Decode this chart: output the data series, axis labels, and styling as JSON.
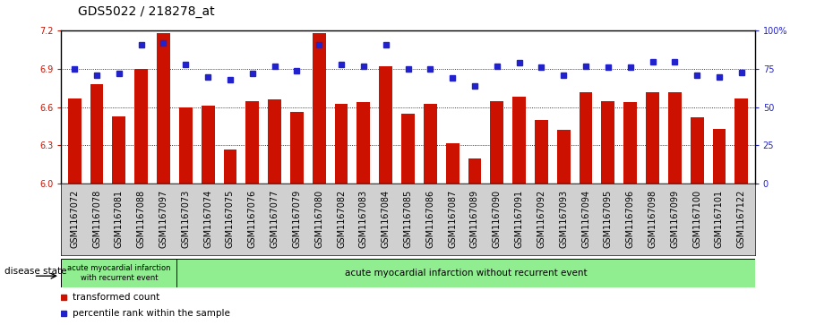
{
  "title": "GDS5022 / 218278_at",
  "categories": [
    "GSM1167072",
    "GSM1167078",
    "GSM1167081",
    "GSM1167088",
    "GSM1167097",
    "GSM1167073",
    "GSM1167074",
    "GSM1167075",
    "GSM1167076",
    "GSM1167077",
    "GSM1167079",
    "GSM1167080",
    "GSM1167082",
    "GSM1167083",
    "GSM1167084",
    "GSM1167085",
    "GSM1167086",
    "GSM1167087",
    "GSM1167089",
    "GSM1167090",
    "GSM1167091",
    "GSM1167092",
    "GSM1167093",
    "GSM1167094",
    "GSM1167095",
    "GSM1167096",
    "GSM1167098",
    "GSM1167099",
    "GSM1167100",
    "GSM1167101",
    "GSM1167122"
  ],
  "bar_values": [
    6.67,
    6.78,
    6.53,
    6.9,
    7.18,
    6.6,
    6.61,
    6.27,
    6.65,
    6.66,
    6.56,
    7.18,
    6.63,
    6.64,
    6.92,
    6.55,
    6.63,
    6.32,
    6.2,
    6.65,
    6.68,
    6.5,
    6.42,
    6.72,
    6.65,
    6.64,
    6.72,
    6.72,
    6.52,
    6.43,
    6.67
  ],
  "dot_values": [
    75.0,
    71.0,
    72.0,
    91.0,
    92.0,
    78.0,
    70.0,
    68.0,
    72.0,
    77.0,
    74.0,
    91.0,
    78.0,
    77.0,
    91.0,
    75.0,
    75.0,
    69.0,
    64.0,
    77.0,
    79.0,
    76.0,
    71.0,
    77.0,
    76.0,
    76.0,
    80.0,
    80.0,
    71.0,
    70.0,
    73.0
  ],
  "ylim_left": [
    6.0,
    7.2
  ],
  "ylim_right": [
    0,
    100
  ],
  "yticks_left": [
    6.0,
    6.3,
    6.6,
    6.9,
    7.2
  ],
  "yticks_right": [
    0,
    25,
    50,
    75,
    100
  ],
  "bar_color": "#CC1100",
  "dot_color": "#2222CC",
  "group1_label": "acute myocardial infarction\nwith recurrent event",
  "group2_label": "acute myocardial infarction without recurrent event",
  "group1_count": 5,
  "disease_state_label": "disease state",
  "legend_bar_label": "transformed count",
  "legend_dot_label": "percentile rank within the sample",
  "group_bg": "#90EE90",
  "xtick_bg": "#D0D0D0",
  "title_fontsize": 10,
  "tick_fontsize": 7,
  "label_fontsize": 8
}
